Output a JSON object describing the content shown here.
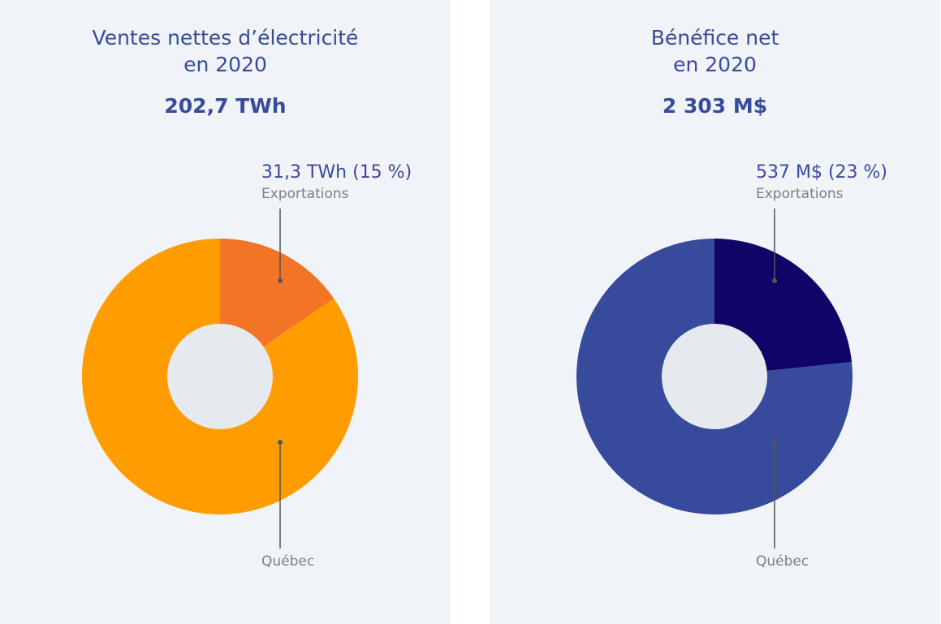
{
  "chart_data": [
    {
      "type": "pie",
      "title": "Ventes nettes d'électricité en 2020",
      "title_lines": [
        "Ventes nettes d’électricité",
        "en 2020"
      ],
      "total": "202,7 TWh",
      "slices": [
        {
          "name": "Exportations",
          "value": 31.3,
          "percent": 15,
          "label": "31,3 TWh (15 %)",
          "color": "#f27527"
        },
        {
          "name": "Québec",
          "value": 171.4,
          "percent": 85,
          "label": "",
          "color": "#ff9d00"
        }
      ],
      "hole_color": "#e6e9ed"
    },
    {
      "type": "pie",
      "title": "Bénéfice net en 2020",
      "title_lines": [
        "Bénéfice net",
        "en 2020"
      ],
      "total": "2 303 M$",
      "slices": [
        {
          "name": "Exportations",
          "value": 537,
          "percent": 23,
          "label": "537 M$ (23 %)",
          "color": "#0f0566"
        },
        {
          "name": "Québec",
          "value": 1766,
          "percent": 77,
          "label": "",
          "color": "#374a9c"
        }
      ],
      "hole_color": "#e6e9ed"
    }
  ],
  "colors": {
    "panel_background": "#f0f4f9",
    "text_primary": "#374a9c",
    "text_secondary": "#7f7f7f",
    "leader_line": "#555555"
  }
}
